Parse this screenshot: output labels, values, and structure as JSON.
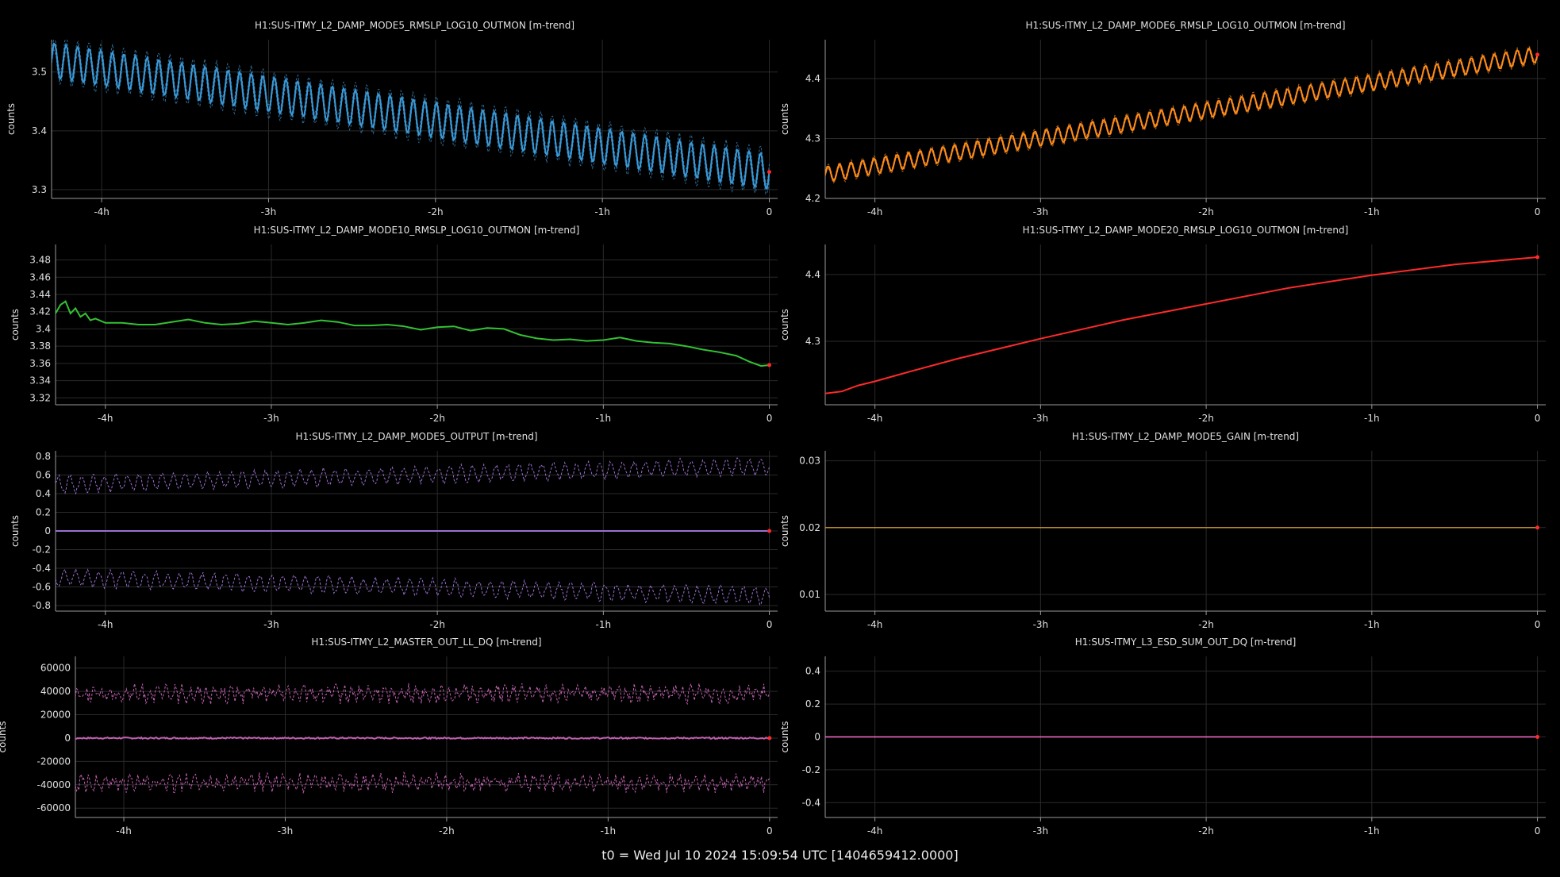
{
  "footer": "t0 = Wed Jul 10 2024 15:09:54 UTC [1404659412.0000]",
  "colors": {
    "background": "#000000",
    "axis": "#9a9a9a",
    "grid": "#2a2a2a",
    "blue": "#3a9ad9",
    "orange": "#ff8c1a",
    "green": "#33c233",
    "red": "#ff2a2a",
    "purple": "#9a6fd0",
    "olive": "#b58a2a",
    "magenta": "#c060b0",
    "pink": "#ff6fd0"
  },
  "chart_data": [
    {
      "type": "line",
      "title": "H1:SUS-ITMY_L2_DAMP_MODE5_RMSLP_LOG10_OUTMON [m-trend]",
      "ylabel": "counts",
      "xticks": [
        "-4h",
        "-3h",
        "-2h",
        "-1h",
        "0"
      ],
      "yticks": [
        "3.3",
        "3.4",
        "3.5"
      ],
      "xlim": [
        -4.3,
        0.05
      ],
      "ylim": [
        3.285,
        3.555
      ],
      "grid": true,
      "color": "blue",
      "trend": {
        "start": 3.52,
        "end": 3.33
      },
      "oscillation": {
        "amplitude": 0.03,
        "cycles": 62
      },
      "envelope": 0.012
    },
    {
      "type": "line",
      "title": "H1:SUS-ITMY_L2_DAMP_MODE6_RMSLP_LOG10_OUTMON [m-trend]",
      "ylabel": "counts",
      "xticks": [
        "-4h",
        "-3h",
        "-2h",
        "-1h",
        "0"
      ],
      "yticks": [
        "4.2",
        "4.3",
        "4.4"
      ],
      "xlim": [
        -4.3,
        0.05
      ],
      "ylim": [
        4.2,
        4.465
      ],
      "grid": true,
      "color": "orange",
      "trend": {
        "start": 4.24,
        "end": 4.44
      },
      "oscillation": {
        "amplitude": 0.013,
        "cycles": 62
      },
      "envelope": 0.004
    },
    {
      "type": "line",
      "title": "H1:SUS-ITMY_L2_DAMP_MODE10_RMSLP_LOG10_OUTMON [m-trend]",
      "ylabel": "counts",
      "xticks": [
        "-4h",
        "-3h",
        "-2h",
        "-1h",
        "0"
      ],
      "yticks": [
        "3.32",
        "3.34",
        "3.36",
        "3.38",
        "3.4",
        "3.42",
        "3.44",
        "3.46",
        "3.48"
      ],
      "xlim": [
        -4.3,
        0.05
      ],
      "ylim": [
        3.312,
        3.498
      ],
      "grid": true,
      "color": "green",
      "points": [
        [
          -4.3,
          3.418
        ],
        [
          -4.27,
          3.428
        ],
        [
          -4.24,
          3.432
        ],
        [
          -4.21,
          3.418
        ],
        [
          -4.18,
          3.424
        ],
        [
          -4.15,
          3.414
        ],
        [
          -4.12,
          3.418
        ],
        [
          -4.09,
          3.41
        ],
        [
          -4.06,
          3.412
        ],
        [
          -4.0,
          3.407
        ],
        [
          -3.9,
          3.407
        ],
        [
          -3.8,
          3.405
        ],
        [
          -3.7,
          3.405
        ],
        [
          -3.6,
          3.408
        ],
        [
          -3.5,
          3.411
        ],
        [
          -3.4,
          3.407
        ],
        [
          -3.3,
          3.405
        ],
        [
          -3.2,
          3.406
        ],
        [
          -3.1,
          3.409
        ],
        [
          -3.0,
          3.407
        ],
        [
          -2.9,
          3.405
        ],
        [
          -2.8,
          3.407
        ],
        [
          -2.7,
          3.41
        ],
        [
          -2.6,
          3.408
        ],
        [
          -2.5,
          3.404
        ],
        [
          -2.4,
          3.404
        ],
        [
          -2.3,
          3.405
        ],
        [
          -2.2,
          3.403
        ],
        [
          -2.1,
          3.399
        ],
        [
          -2.0,
          3.402
        ],
        [
          -1.9,
          3.403
        ],
        [
          -1.8,
          3.398
        ],
        [
          -1.7,
          3.401
        ],
        [
          -1.6,
          3.4
        ],
        [
          -1.5,
          3.393
        ],
        [
          -1.4,
          3.389
        ],
        [
          -1.3,
          3.387
        ],
        [
          -1.2,
          3.388
        ],
        [
          -1.1,
          3.386
        ],
        [
          -1.0,
          3.387
        ],
        [
          -0.9,
          3.39
        ],
        [
          -0.8,
          3.386
        ],
        [
          -0.7,
          3.384
        ],
        [
          -0.6,
          3.383
        ],
        [
          -0.5,
          3.38
        ],
        [
          -0.4,
          3.376
        ],
        [
          -0.3,
          3.373
        ],
        [
          -0.2,
          3.369
        ],
        [
          -0.12,
          3.362
        ],
        [
          -0.05,
          3.357
        ],
        [
          0.0,
          3.358
        ]
      ]
    },
    {
      "type": "line",
      "title": "H1:SUS-ITMY_L2_DAMP_MODE20_RMSLP_LOG10_OUTMON [m-trend]",
      "ylabel": "counts",
      "xticks": [
        "-4h",
        "-3h",
        "-2h",
        "-1h",
        "0"
      ],
      "yticks": [
        "4.3",
        "4.4"
      ],
      "xlim": [
        -4.3,
        0.05
      ],
      "ylim": [
        4.205,
        4.445
      ],
      "grid": true,
      "color": "red",
      "points": [
        [
          -4.3,
          4.222
        ],
        [
          -4.2,
          4.225
        ],
        [
          -4.1,
          4.234
        ],
        [
          -4.0,
          4.24
        ],
        [
          -3.8,
          4.254
        ],
        [
          -3.5,
          4.274
        ],
        [
          -3.0,
          4.304
        ],
        [
          -2.5,
          4.332
        ],
        [
          -2.0,
          4.356
        ],
        [
          -1.5,
          4.38
        ],
        [
          -1.0,
          4.399
        ],
        [
          -0.5,
          4.415
        ],
        [
          0.0,
          4.426
        ]
      ]
    },
    {
      "type": "line",
      "title": "H1:SUS-ITMY_L2_DAMP_MODE5_OUTPUT [m-trend]",
      "ylabel": "counts",
      "xticks": [
        "-4h",
        "-3h",
        "-2h",
        "-1h",
        "0"
      ],
      "yticks": [
        "-0.8",
        "-0.6",
        "-0.4",
        "-0.2",
        "0",
        "0.2",
        "0.4",
        "0.6",
        "0.8"
      ],
      "xlim": [
        -4.3,
        0.05
      ],
      "ylim": [
        -0.86,
        0.86
      ],
      "grid": true,
      "color": "purple",
      "max": {
        "start": 0.5,
        "end": 0.7,
        "amplitude": 0.08,
        "cycles": 62
      },
      "min": {
        "start": -0.5,
        "end": -0.7,
        "amplitude": 0.08,
        "cycles": 62
      },
      "mean": 0.0
    },
    {
      "type": "line",
      "title": "H1:SUS-ITMY_L2_DAMP_MODE5_GAIN [m-trend]",
      "ylabel": "counts",
      "xticks": [
        "-4h",
        "-3h",
        "-2h",
        "-1h",
        "0"
      ],
      "yticks": [
        "0.01",
        "0.02",
        "0.03"
      ],
      "xlim": [
        -4.3,
        0.05
      ],
      "ylim": [
        0.0075,
        0.0315
      ],
      "grid": true,
      "color": "olive",
      "constant": 0.02
    },
    {
      "type": "line",
      "title": "H1:SUS-ITMY_L2_MASTER_OUT_LL_DQ [m-trend]",
      "ylabel": "counts",
      "xticks": [
        "-4h",
        "-3h",
        "-2h",
        "-1h",
        "0"
      ],
      "yticks": [
        "-60000",
        "-40000",
        "-20000",
        "0",
        "20000",
        "40000",
        "60000"
      ],
      "xlim": [
        -4.3,
        0.05
      ],
      "ylim": [
        -68000,
        70000
      ],
      "grid": true,
      "color": "magenta",
      "max_mean": 38000,
      "min_mean": -38000,
      "noise": 7000,
      "mean": 0
    },
    {
      "type": "line",
      "title": "H1:SUS-ITMY_L3_ESD_SUM_OUT_DQ [m-trend]",
      "ylabel": "counts",
      "xticks": [
        "-4h",
        "-3h",
        "-2h",
        "-1h",
        "0"
      ],
      "yticks": [
        "-0.4",
        "-0.2",
        "0",
        "0.2",
        "0.4"
      ],
      "xlim": [
        -4.3,
        0.05
      ],
      "ylim": [
        -0.49,
        0.49
      ],
      "grid": true,
      "color": "pink",
      "constant": 0.0
    }
  ]
}
